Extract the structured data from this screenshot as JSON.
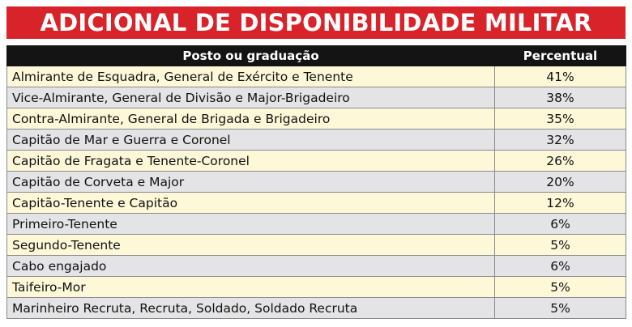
{
  "colors": {
    "title_bg": "#d8232a",
    "header_bg": "#141414",
    "row_odd": "#fdf8d8",
    "row_even": "#e4e4e6"
  },
  "chart_data": {
    "type": "table",
    "title": "ADICIONAL DE DISPONIBILIDADE MILITAR",
    "columns": [
      "Posto ou graduação",
      "Percentual"
    ],
    "rows": [
      {
        "rank": "Almirante de Esquadra, General de Exército e Tenente",
        "percent": "41%"
      },
      {
        "rank": "Vice-Almirante, General de Divisão e Major-Brigadeiro",
        "percent": "38%"
      },
      {
        "rank": "Contra-Almirante, General de Brigada e Brigadeiro",
        "percent": "35%"
      },
      {
        "rank": "Capitão de Mar e Guerra e Coronel",
        "percent": "32%"
      },
      {
        "rank": "Capitão de Fragata e Tenente-Coronel",
        "percent": "26%"
      },
      {
        "rank": "Capitão de Corveta e Major",
        "percent": "20%"
      },
      {
        "rank": "Capitão-Tenente e Capitão",
        "percent": "12%"
      },
      {
        "rank": "Primeiro-Tenente",
        "percent": "6%"
      },
      {
        "rank": "Segundo-Tenente",
        "percent": "5%"
      },
      {
        "rank": "Cabo engajado",
        "percent": "6%"
      },
      {
        "rank": "Taifeiro-Mor",
        "percent": "5%"
      },
      {
        "rank": "Marinheiro Recruta, Recruta, Soldado, Soldado Recruta",
        "percent": "5%"
      }
    ]
  }
}
